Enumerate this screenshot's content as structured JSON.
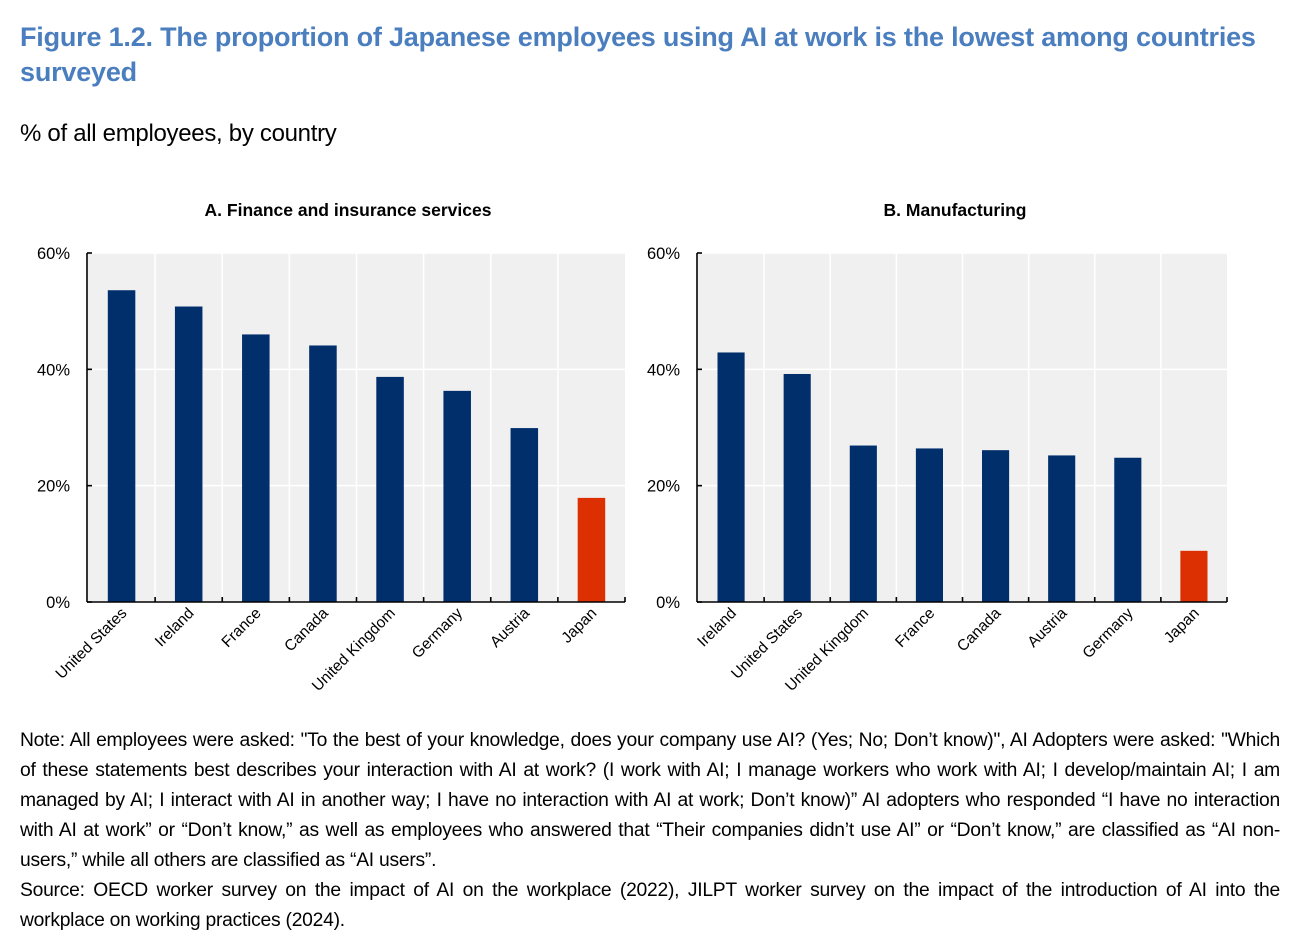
{
  "header": {
    "title": "Figure 1.2. The proportion of Japanese employees using AI at work is the lowest among countries surveyed",
    "subtitle": "% of all employees, by country"
  },
  "colors": {
    "title": "#4a7ebf",
    "bar": "#002f6c",
    "highlight": "#dc2f02",
    "plot_background": "#f0f0f0",
    "gridline": "#ffffff"
  },
  "chart_data": [
    {
      "type": "bar",
      "title": "A. Finance and insurance services",
      "xlabel": "",
      "ylabel": "",
      "ylim": [
        0,
        60
      ],
      "yticks": [
        0,
        20,
        40,
        60
      ],
      "ytick_labels": [
        "0%",
        "20%",
        "40%",
        "60%"
      ],
      "grid": true,
      "categories": [
        "United States",
        "Ireland",
        "France",
        "Canada",
        "United Kingdom",
        "Germany",
        "Austria",
        "Japan"
      ],
      "values": [
        53.6,
        50.8,
        46.0,
        44.1,
        38.7,
        36.3,
        29.9,
        17.9
      ],
      "highlight": "Japan"
    },
    {
      "type": "bar",
      "title": "B. Manufacturing",
      "xlabel": "",
      "ylabel": "",
      "ylim": [
        0,
        60
      ],
      "yticks": [
        0,
        20,
        40,
        60
      ],
      "ytick_labels": [
        "0%",
        "20%",
        "40%",
        "60%"
      ],
      "grid": true,
      "categories": [
        "Ireland",
        "United States",
        "United Kingdom",
        "France",
        "Canada",
        "Austria",
        "Germany",
        "Japan"
      ],
      "values": [
        42.9,
        39.2,
        26.9,
        26.4,
        26.1,
        25.2,
        24.8,
        8.8
      ],
      "highlight": "Japan"
    }
  ],
  "footer": {
    "note": "Note: All employees were asked: \"To the best of your knowledge, does your company use AI? (Yes; No; Don’t know)\", AI Adopters were asked: \"Which of these statements best describes your interaction with AI at work? (I work with AI; I manage workers who work with AI; I develop/maintain AI; I am managed by AI; I interact with AI in another way; I have no interaction with AI at work; Don’t know)” AI adopters who responded “I have no interaction with AI at work” or “Don’t know,” as well as employees who answered that “Their companies didn’t use AI” or “Don’t know,” are classified as “AI non-users,” while all others are classified as “AI users”.",
    "source": "Source: OECD worker survey on the impact of AI on the workplace (2022), JILPT worker survey on the impact of the introduction of AI into the workplace on working practices (2024)."
  }
}
